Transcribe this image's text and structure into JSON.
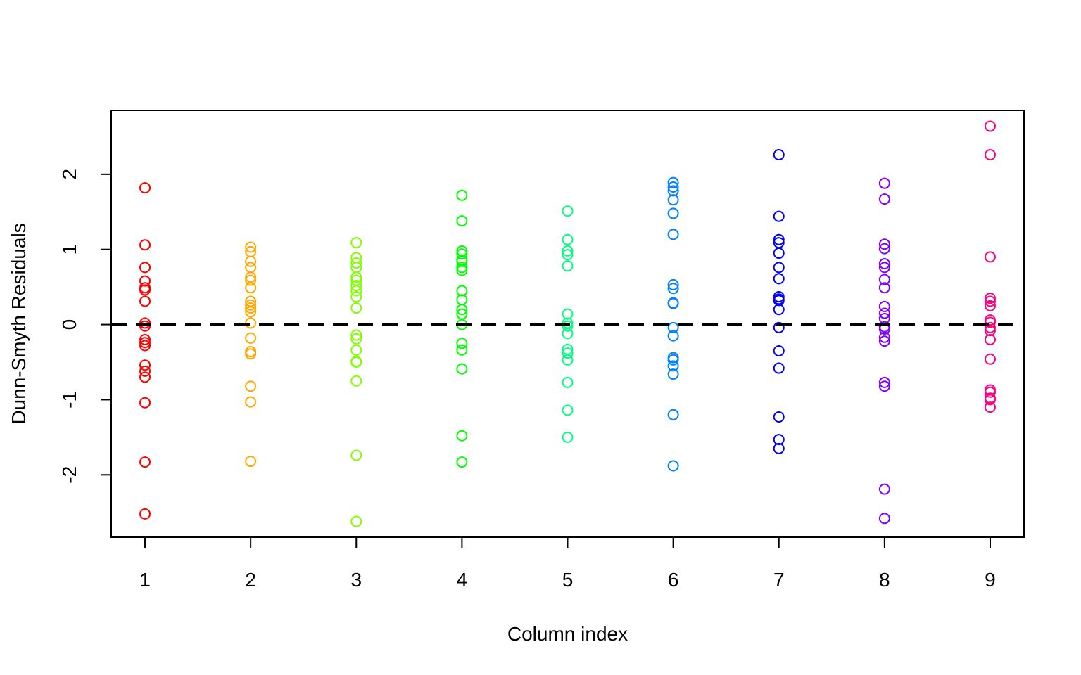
{
  "chart_data": {
    "type": "scatter",
    "title": "",
    "xlabel": "Column index",
    "ylabel": "Dunn-Smyth Residuals",
    "xlim": [
      0.68,
      9.32
    ],
    "ylim": [
      -2.83,
      2.85
    ],
    "x_ticks": [
      "1",
      "2",
      "3",
      "4",
      "5",
      "6",
      "7",
      "8",
      "9"
    ],
    "y_ticks": [
      "-2",
      "-1",
      "0",
      "1",
      "2"
    ],
    "reference_line": {
      "y": 0,
      "style": "dashed",
      "color": "#000000"
    },
    "grid": false,
    "legend": "none",
    "series": [
      {
        "x": 1,
        "color": "#ff0000",
        "values": [
          1.82,
          1.06,
          0.76,
          0.58,
          0.49,
          0.46,
          0.31,
          0.02,
          -0.02,
          -0.2,
          -0.24,
          -0.28,
          -0.54,
          -0.62,
          -0.7,
          -1.04,
          -1.83,
          -2.52
        ]
      },
      {
        "x": 2,
        "color": "#ffa500",
        "values": [
          1.03,
          0.97,
          0.84,
          0.76,
          0.63,
          0.59,
          0.49,
          0.31,
          0.26,
          0.22,
          0.17,
          0.02,
          -0.18,
          -0.36,
          -0.39,
          -0.82,
          -1.03,
          -1.82
        ]
      },
      {
        "x": 3,
        "color": "#80ff00",
        "values": [
          1.09,
          0.89,
          0.82,
          0.76,
          0.63,
          0.59,
          0.52,
          0.45,
          0.37,
          0.22,
          -0.14,
          -0.19,
          -0.34,
          -0.49,
          -0.5,
          -0.75,
          -1.74,
          -2.62
        ]
      },
      {
        "x": 4,
        "color": "#00ff00",
        "values": [
          1.72,
          1.38,
          0.98,
          0.94,
          0.86,
          0.84,
          0.76,
          0.72,
          0.45,
          0.33,
          0.2,
          0.14,
          0.0,
          -0.25,
          -0.34,
          -0.59,
          -1.48,
          -1.83
        ]
      },
      {
        "x": 5,
        "color": "#00ff80",
        "values": [
          1.51,
          1.13,
          0.98,
          0.93,
          0.78,
          0.14,
          0.02,
          -0.02,
          -0.12,
          -0.33,
          -0.38,
          -0.47,
          -0.77,
          -1.14,
          -1.5
        ]
      },
      {
        "x": 6,
        "color": "#0080ff",
        "values": [
          1.89,
          1.83,
          1.78,
          1.66,
          1.48,
          1.2,
          0.53,
          0.48,
          0.29,
          0.28,
          -0.04,
          -0.15,
          -0.44,
          -0.47,
          -0.55,
          -0.66,
          -1.2,
          -1.88
        ]
      },
      {
        "x": 7,
        "color": "#0000ff",
        "values": [
          2.26,
          1.44,
          1.13,
          1.09,
          0.95,
          0.76,
          0.61,
          0.37,
          0.34,
          0.32,
          0.2,
          -0.04,
          -0.35,
          -0.58,
          -1.23,
          -1.53,
          -1.65
        ]
      },
      {
        "x": 8,
        "color": "#8000ff",
        "values": [
          1.88,
          1.67,
          1.07,
          1.01,
          0.81,
          0.76,
          0.6,
          0.49,
          0.24,
          0.15,
          0.08,
          -0.03,
          -0.06,
          -0.17,
          -0.22,
          -0.77,
          -0.82,
          -2.19,
          -2.58
        ]
      },
      {
        "x": 9,
        "color": "#ff0080",
        "values": [
          2.64,
          2.26,
          0.9,
          0.35,
          0.31,
          0.25,
          0.06,
          0.03,
          -0.04,
          -0.08,
          -0.2,
          -0.46,
          -0.87,
          -0.9,
          -0.98,
          -1.0,
          -1.1
        ]
      }
    ]
  }
}
